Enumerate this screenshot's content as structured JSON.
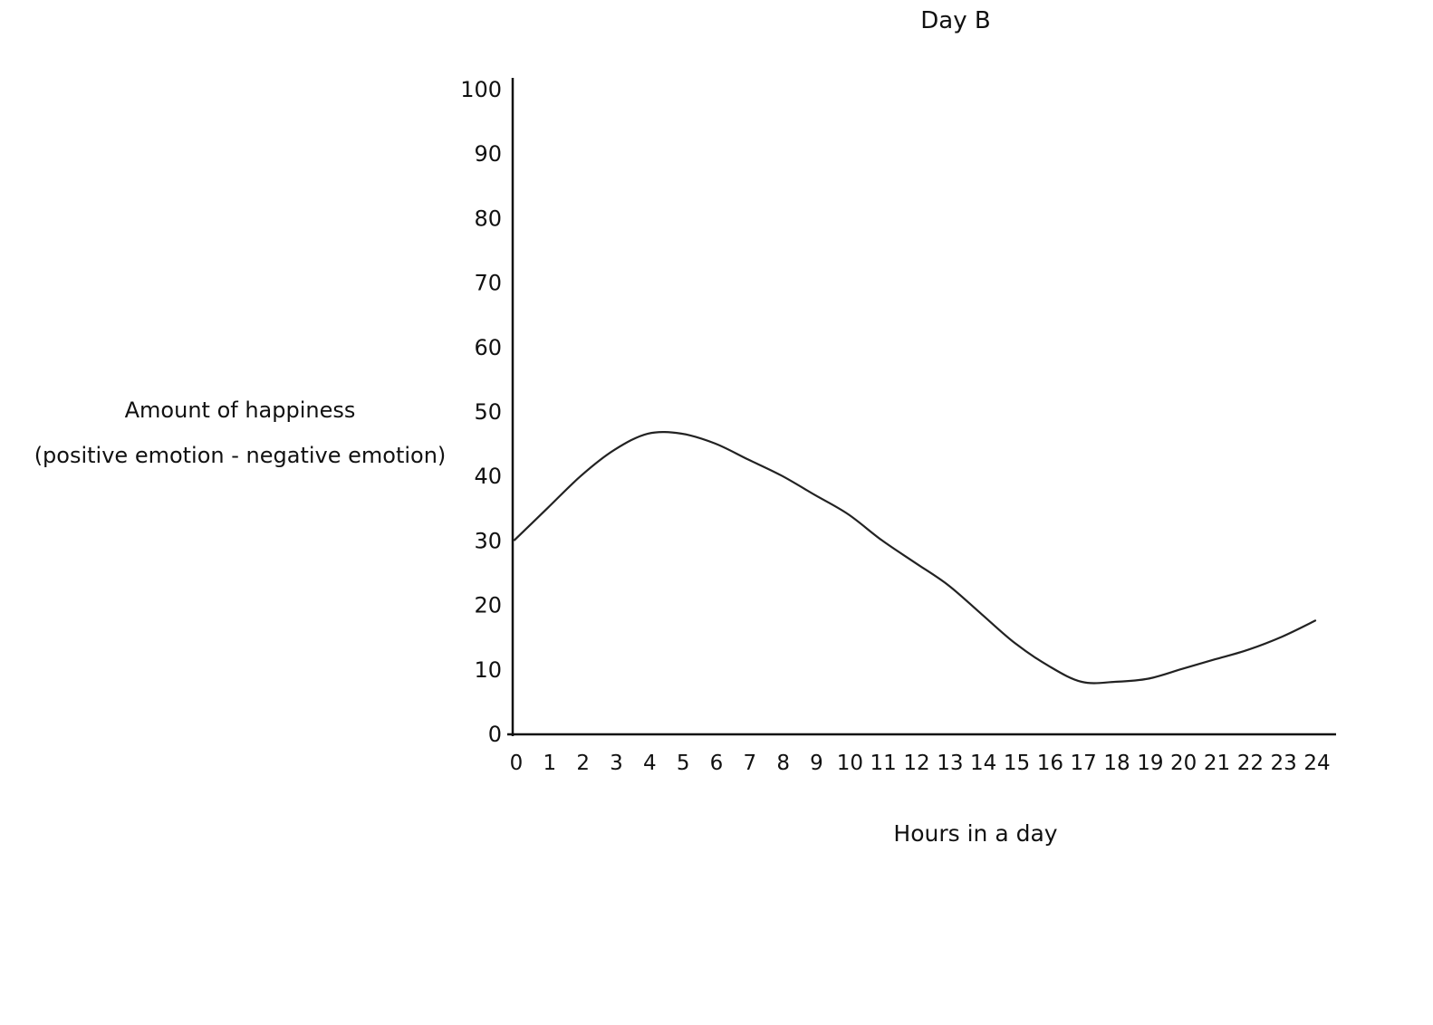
{
  "chart_data": {
    "type": "line",
    "title": "Day B",
    "xlabel": "Hours in a day",
    "ylabel_line1": "Amount of happiness",
    "ylabel_line2": "(positive emotion - negative emotion)",
    "x_ticks": [
      "0",
      "1",
      "2",
      "3",
      "4",
      "5",
      "6",
      "7",
      "8",
      "9",
      "10",
      "11",
      "12",
      "13",
      "14",
      "15",
      "16",
      "17",
      "18",
      "19",
      "20",
      "21",
      "22",
      "23",
      "24"
    ],
    "y_ticks": [
      "0",
      "10",
      "20",
      "30",
      "40",
      "50",
      "60",
      "70",
      "80",
      "90",
      "100"
    ],
    "xlim": [
      0,
      24
    ],
    "ylim": [
      0,
      100
    ],
    "grid": false,
    "series": [
      {
        "x": [
          0,
          1,
          2,
          3,
          4,
          5,
          6,
          7,
          8,
          9,
          10,
          11,
          12,
          13,
          14,
          15,
          16,
          17,
          18,
          19,
          20,
          21,
          22,
          23,
          24
        ],
        "y": [
          30,
          35,
          40,
          44,
          46.5,
          46.5,
          45,
          42.5,
          40,
          37,
          34,
          30,
          26.5,
          23,
          18.5,
          14,
          10.5,
          8,
          8,
          8.5,
          10,
          11.5,
          13,
          15,
          17.5
        ]
      }
    ]
  },
  "colors": {
    "line": "#222222",
    "axis": "#111111",
    "text": "#111111",
    "background": "#ffffff"
  }
}
